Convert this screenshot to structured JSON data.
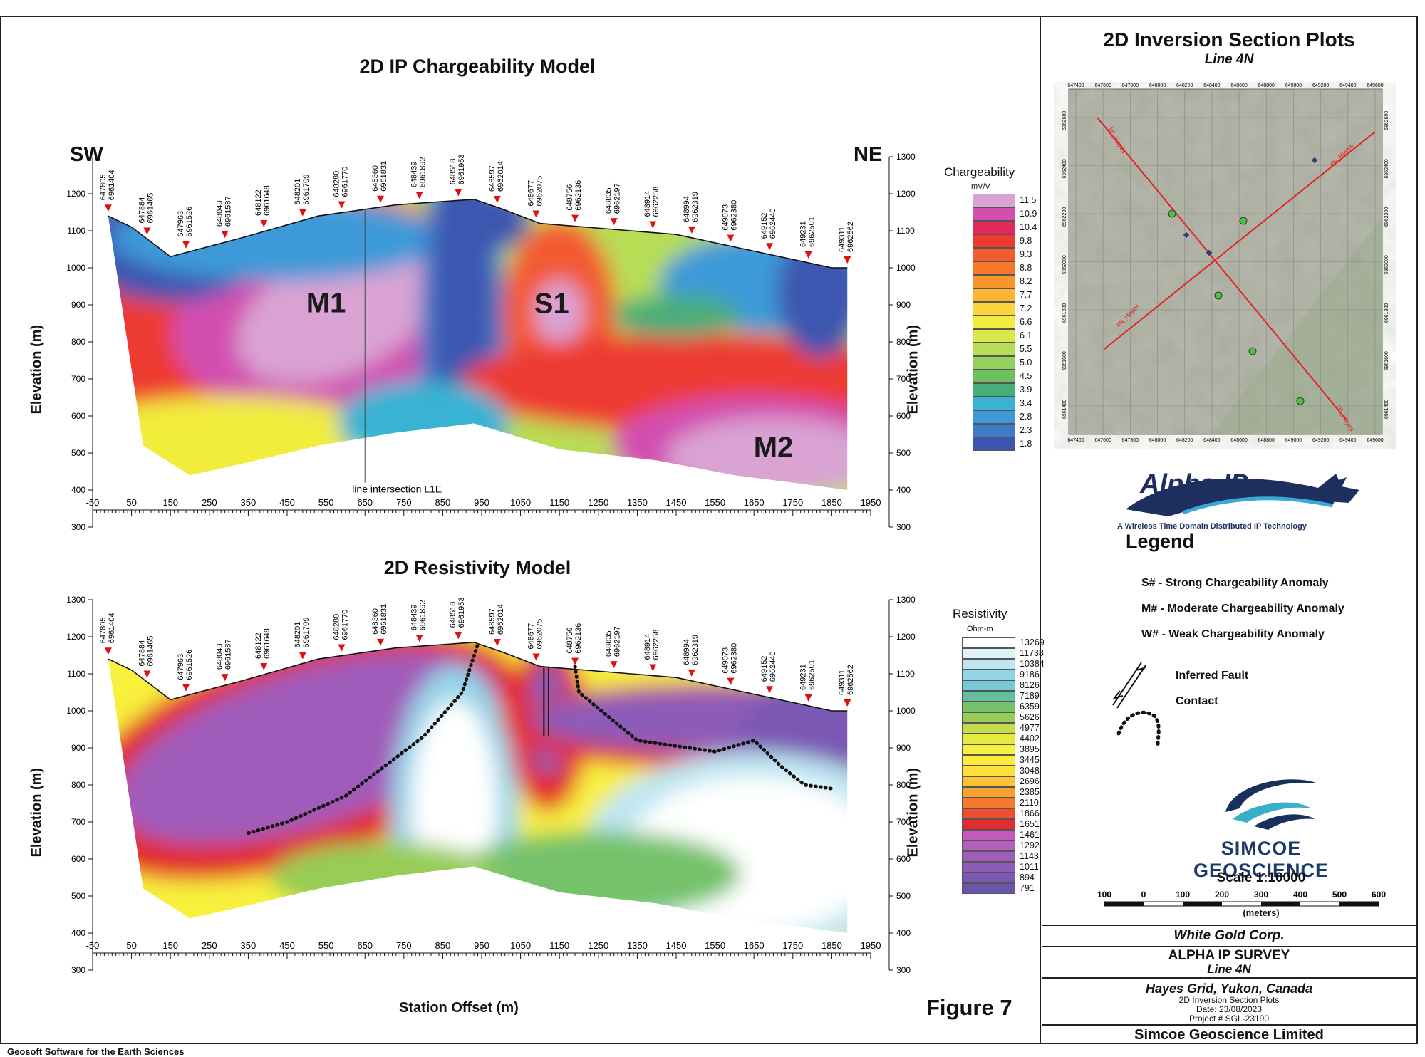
{
  "figure_label": "Figure 7",
  "footer_software": "Geosoft Software for the Earth Sciences",
  "colors": {
    "frame": "#222222",
    "marker": "#e01010",
    "map_line": "#e52222"
  },
  "top_panel": {
    "title": "2D IP Chargeability Model",
    "left_dir": "SW",
    "right_dir": "NE",
    "ylabel": "Elevation (m)",
    "annotation": "line intersection L1E",
    "anomalies": [
      "M1",
      "S1",
      "M2"
    ],
    "legend": {
      "title": "Chargeability",
      "unit": "mV/V",
      "values": [
        "11.5",
        "10.9",
        "10.4",
        "9.8",
        "9.3",
        "8.8",
        "8.2",
        "7.7",
        "7.2",
        "6.6",
        "6.1",
        "5.5",
        "5.0",
        "4.5",
        "3.9",
        "3.4",
        "2.8",
        "2.3",
        "1.8"
      ],
      "colors": [
        "#d9a3d3",
        "#d24fb0",
        "#e12a5a",
        "#ee3a32",
        "#f35a30",
        "#f6782d",
        "#f8962e",
        "#fab533",
        "#fdd53b",
        "#f2ec3c",
        "#d6e84a",
        "#b7dd55",
        "#93d05d",
        "#6cc062",
        "#48ae79",
        "#38b3d4",
        "#3c9ad8",
        "#3d7bc8",
        "#3c56b0"
      ]
    }
  },
  "bottom_panel": {
    "title": "2D Resistivity Model",
    "ylabel": "Elevation (m)",
    "xlabel": "Station Offset (m)",
    "legend": {
      "title": "Resistivity",
      "unit": "Ohm-m",
      "values": [
        "13269",
        "11738",
        "10384",
        "9186",
        "8126",
        "7189",
        "6359",
        "5626",
        "4977",
        "4402",
        "3895",
        "3445",
        "3048",
        "2696",
        "2385",
        "2110",
        "1866",
        "1651",
        "1461",
        "1292",
        "1143",
        "1011",
        "894",
        "791"
      ],
      "colors": [
        "#ffffff",
        "#def3f8",
        "#bde6f1",
        "#95d4e8",
        "#78c9d6",
        "#63bf9f",
        "#75c26a",
        "#97cc55",
        "#c3dc48",
        "#e6ea3e",
        "#f8f03c",
        "#fdec3c",
        "#fde03a",
        "#fbc435",
        "#f8a030",
        "#f57a2d",
        "#ef4d30",
        "#e32a2c",
        "#c45ab8",
        "#b45ebe",
        "#a05cba",
        "#8d5bb8",
        "#7a58b3",
        "#6a55ad"
      ]
    }
  },
  "chart_data": [
    {
      "type": "heatmap",
      "title": "2D IP Chargeability Model",
      "xlabel": "",
      "ylabel": "Elevation (m)",
      "xlim": [
        -50,
        1950
      ],
      "ylim": [
        300,
        1300
      ],
      "x_ticks": [
        "-50",
        "50",
        "150",
        "250",
        "350",
        "450",
        "550",
        "650",
        "750",
        "850",
        "950",
        "1050",
        "1150",
        "1250",
        "1350",
        "1450",
        "1550",
        "1650",
        "1750",
        "1850",
        "1950"
      ],
      "y_ticks": [
        "300",
        "400",
        "500",
        "600",
        "700",
        "800",
        "900",
        "1000",
        "1100",
        "1200"
      ],
      "y_ticks_right": [
        "300",
        "400",
        "500",
        "600",
        "700",
        "800",
        "900",
        "1000",
        "1100",
        "1200",
        "1300"
      ],
      "stations": [
        "647805 6961404",
        "647884 6961465",
        "647963 6961526",
        "648043 6961587",
        "648122 6961648",
        "648201 6961709",
        "648280 6961770",
        "648360 6961831",
        "648439 6961892",
        "648518 6961953",
        "648597 6962014",
        "648677 6962075",
        "648756 6962136",
        "648835 6962197",
        "648914 6962258",
        "648994 6962319",
        "649073 6962380",
        "649152 6962440",
        "649231 6962501",
        "649311 6962562"
      ],
      "surface": {
        "x": [
          -10,
          50,
          150,
          330,
          530,
          730,
          930,
          1000,
          1100,
          1450,
          1850,
          1890
        ],
        "y": [
          1140,
          1110,
          1030,
          1080,
          1140,
          1170,
          1185,
          1160,
          1120,
          1090,
          1000,
          1000
        ]
      },
      "base": {
        "x": [
          -10,
          80,
          200,
          330,
          530,
          730,
          930,
          1150,
          1400,
          1600,
          1750,
          1890
        ],
        "y": [
          1140,
          520,
          440,
          470,
          520,
          555,
          580,
          510,
          480,
          440,
          420,
          400
        ]
      },
      "color_scale": {
        "title": "Chargeability",
        "unit": "mV/V",
        "min": 1.8,
        "max": 11.5
      }
    },
    {
      "type": "heatmap",
      "title": "2D Resistivity Model",
      "xlabel": "Station Offset (m)",
      "ylabel": "Elevation (m)",
      "xlim": [
        -50,
        1950
      ],
      "ylim": [
        300,
        1300
      ],
      "x_ticks": [
        "-50",
        "50",
        "150",
        "250",
        "350",
        "450",
        "550",
        "650",
        "750",
        "850",
        "950",
        "1050",
        "1150",
        "1250",
        "1350",
        "1450",
        "1550",
        "1650",
        "1750",
        "1850",
        "1950"
      ],
      "y_ticks": [
        "300",
        "400",
        "500",
        "600",
        "700",
        "800",
        "900",
        "1000",
        "1100",
        "1200",
        "1300"
      ],
      "stations": [
        "647805 6961404",
        "647884 6961465",
        "647963 6961526",
        "648043 6961587",
        "648122 6961648",
        "648201 6961709",
        "648280 6961770",
        "648360 6961831",
        "648439 6961892",
        "648518 6961953",
        "648597 6962014",
        "648677 6962075",
        "648756 6962136",
        "648835 6962197",
        "648914 6962258",
        "648994 6962319",
        "649073 6962380",
        "649152 6962440",
        "649231 6962501",
        "649311 6962562"
      ],
      "surface": {
        "x": [
          -10,
          50,
          150,
          330,
          530,
          730,
          930,
          1000,
          1100,
          1450,
          1850,
          1890
        ],
        "y": [
          1140,
          1110,
          1030,
          1080,
          1140,
          1170,
          1185,
          1160,
          1120,
          1090,
          1000,
          1000
        ]
      },
      "base": {
        "x": [
          -10,
          80,
          200,
          330,
          530,
          730,
          930,
          1150,
          1400,
          1600,
          1750,
          1890
        ],
        "y": [
          1140,
          520,
          440,
          470,
          520,
          555,
          580,
          510,
          480,
          440,
          420,
          400
        ]
      },
      "color_scale": {
        "title": "Resistivity",
        "unit": "Ohm-m",
        "min": 791,
        "max": 13269
      }
    }
  ],
  "right_panel": {
    "title": "2D Inversion Section Plots",
    "subtitle": "Line 4N",
    "map": {
      "x_ticks": [
        "647400",
        "647600",
        "647800",
        "648000",
        "648200",
        "648400",
        "648600",
        "648800",
        "649000",
        "649200",
        "649400",
        "649600"
      ],
      "y_ticks": [
        "6962600",
        "6962400",
        "6962200",
        "6962000",
        "6961800",
        "6961600",
        "6961400"
      ],
      "line_labels": [
        "1E_Hayes",
        "4N_Hayes",
        "4N_Hayes",
        "1E_Hayes"
      ]
    },
    "logo_text": "Alpha IP",
    "logo_tagline": "A Wireless Time Domain Distributed IP Technology",
    "legend_title": "Legend",
    "legend_items": [
      "S# - Strong Chargeability Anomaly",
      "M# - Moderate Chargeability Anomaly",
      "W# - Weak Chargeability Anomaly"
    ],
    "legend_symbols": [
      "Inferred Fault",
      "Contact"
    ],
    "company_logo_text": "SIMCOE GEOSCIENCE",
    "scale_title": "Scale 1:10000",
    "scale_ticks": [
      "100",
      "0",
      "100",
      "200",
      "300",
      "400",
      "500",
      "600"
    ],
    "scale_unit": "(meters)",
    "title_block": {
      "client": "White Gold Corp.",
      "survey": "ALPHA IP SURVEY",
      "line": "Line 4N",
      "location": "Hayes Grid, Yukon, Canada",
      "desc": "2D Inversion Section Plots",
      "date": "Date: 23/08/2023",
      "project": "Project # SGL-23190",
      "company": "Simcoe Geoscience Limited"
    }
  }
}
